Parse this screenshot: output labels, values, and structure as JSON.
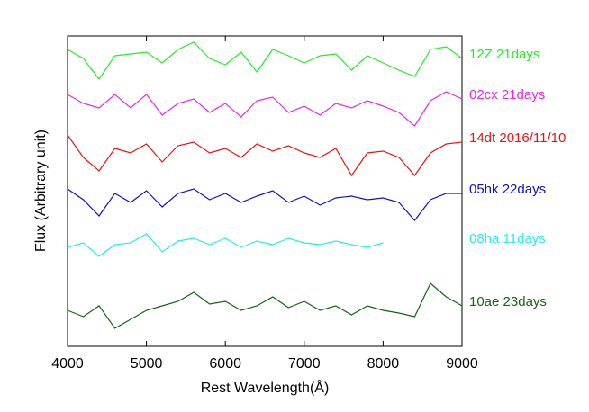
{
  "chart_data": {
    "type": "line",
    "x_label": "Rest Wavelength(Å)",
    "y_label": "Flux (Arbitrary unit)",
    "x": [
      4000,
      4200,
      4400,
      4600,
      4800,
      5000,
      5200,
      5400,
      5600,
      5800,
      6000,
      6200,
      6400,
      6600,
      6800,
      7000,
      7200,
      7400,
      7600,
      7800,
      8000,
      8200,
      8400,
      8600,
      8800,
      9000
    ],
    "xlim": [
      4000,
      9000
    ],
    "xticks": [
      4000,
      5000,
      6000,
      7000,
      8000,
      9000
    ],
    "ylim": [
      0,
      345
    ],
    "series": [
      {
        "name": "12Z 21days",
        "color": "#22ee22",
        "values": [
          330,
          320,
          297,
          323,
          325,
          327,
          315,
          330,
          338,
          320,
          313,
          327,
          305,
          330,
          323,
          315,
          323,
          325,
          307,
          323,
          315,
          307,
          300,
          330,
          333,
          320
        ]
      },
      {
        "name": "02cx 21days",
        "color": "#ee22ee",
        "values": [
          280,
          270,
          265,
          280,
          265,
          280,
          257,
          270,
          275,
          260,
          270,
          255,
          273,
          277,
          260,
          267,
          257,
          270,
          265,
          273,
          267,
          260,
          245,
          273,
          283,
          275
        ]
      },
      {
        "name": "14dt 2016/11/10",
        "color": "#ee1111",
        "values": [
          235,
          210,
          195,
          220,
          215,
          225,
          205,
          223,
          227,
          215,
          220,
          210,
          225,
          217,
          223,
          215,
          210,
          220,
          190,
          215,
          217,
          210,
          190,
          215,
          225,
          227
        ]
      },
      {
        "name": "05hk 22days",
        "color": "#1111cc",
        "values": [
          175,
          163,
          145,
          170,
          160,
          173,
          155,
          170,
          175,
          163,
          170,
          160,
          167,
          173,
          160,
          167,
          157,
          165,
          167,
          163,
          165,
          160,
          140,
          163,
          170,
          170
        ]
      },
      {
        "name": "08ha 11days",
        "color": "#22eeee",
        "values": [
          110,
          115,
          100,
          113,
          115,
          125,
          105,
          117,
          120,
          113,
          120,
          110,
          117,
          113,
          120,
          115,
          113,
          117,
          113,
          110,
          115,
          null,
          null,
          null,
          null,
          null
        ]
      },
      {
        "name": "10ae 23days",
        "color": "#116611",
        "values": [
          40,
          33,
          45,
          20,
          30,
          40,
          45,
          50,
          60,
          47,
          50,
          40,
          45,
          55,
          43,
          50,
          40,
          45,
          35,
          45,
          40,
          37,
          33,
          70,
          55,
          45
        ]
      }
    ]
  }
}
